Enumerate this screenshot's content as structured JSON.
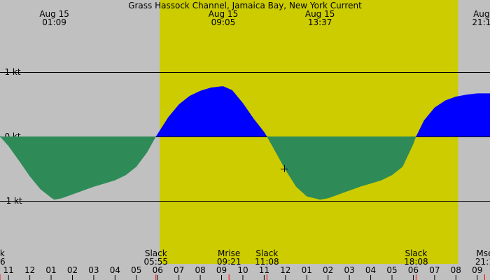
{
  "chart_data": {
    "type": "area",
    "title": "Grass Hassock Channel, Jamaica Bay, New York Current",
    "xlabel": "",
    "ylabel": "",
    "unit": "kt",
    "ylim": [
      -1.7,
      1.97
    ],
    "y_ticks": [
      {
        "value": 1,
        "label": "1 kt"
      },
      {
        "value": 0,
        "label": "0 kt"
      },
      {
        "value": -1,
        "label": "-1 kt"
      }
    ],
    "x_range_hours": [
      22.6,
      45.6
    ],
    "daylight": {
      "start": 30.1,
      "end": 44.1
    },
    "x_hour_ticks": [
      {
        "hour": 23,
        "label": "11"
      },
      {
        "hour": 24,
        "label": "12"
      },
      {
        "hour": 25,
        "label": "01"
      },
      {
        "hour": 26,
        "label": "02"
      },
      {
        "hour": 27,
        "label": "03"
      },
      {
        "hour": 28,
        "label": "04"
      },
      {
        "hour": 29,
        "label": "05"
      },
      {
        "hour": 30,
        "label": "06"
      },
      {
        "hour": 31,
        "label": "07"
      },
      {
        "hour": 32,
        "label": "08"
      },
      {
        "hour": 33,
        "label": "09"
      },
      {
        "hour": 34,
        "label": "10"
      },
      {
        "hour": 35,
        "label": "11"
      },
      {
        "hour": 36,
        "label": "12"
      },
      {
        "hour": 37,
        "label": "01"
      },
      {
        "hour": 38,
        "label": "02"
      },
      {
        "hour": 39,
        "label": "03"
      },
      {
        "hour": 40,
        "label": "04"
      },
      {
        "hour": 41,
        "label": "05"
      },
      {
        "hour": 42,
        "label": "06"
      },
      {
        "hour": 43,
        "label": "07"
      },
      {
        "hour": 44,
        "label": "08"
      },
      {
        "hour": 45,
        "label": "09"
      }
    ],
    "top_events": [
      {
        "hour": 25.15,
        "date": "Aug 15",
        "time": "01:09"
      },
      {
        "hour": 33.08,
        "date": "Aug 15",
        "time": "09:05"
      },
      {
        "hour": 37.62,
        "date": "Aug 15",
        "time": "13:37"
      },
      {
        "hour": 45.2,
        "date": "Aug",
        "time": "21:1"
      }
    ],
    "bottom_events": [
      {
        "hour": 22.6,
        "label": "ck",
        "time": "36"
      },
      {
        "hour": 29.92,
        "label": "Slack",
        "time": "05:55"
      },
      {
        "hour": 33.35,
        "label": "Mrise",
        "time": "09:21"
      },
      {
        "hour": 35.13,
        "label": "Slack",
        "time": "11:08"
      },
      {
        "hour": 42.13,
        "label": "Slack",
        "time": "18:08"
      },
      {
        "hour": 45.35,
        "label": "Mse",
        "time": "21:1"
      }
    ],
    "series": [
      {
        "x": [
          22.6,
          23,
          23.5,
          24,
          24.5,
          25,
          25.15,
          25.5,
          26,
          26.5,
          27,
          27.5,
          28,
          28.5,
          29,
          29.5,
          29.92,
          30.5,
          31,
          31.5,
          32,
          32.5,
          33,
          33.08,
          33.5,
          34,
          34.5,
          35,
          35.13,
          35.5,
          36,
          36.5,
          37,
          37.5,
          37.62,
          38,
          38.5,
          39,
          39.5,
          40,
          40.5,
          41,
          41.5,
          42,
          42.13,
          42.5,
          43,
          43.5,
          44,
          44.5,
          45,
          45.2,
          45.6
        ],
        "y": [
          0,
          -0.15,
          -0.38,
          -0.62,
          -0.82,
          -0.95,
          -0.98,
          -0.96,
          -0.9,
          -0.84,
          -0.78,
          -0.73,
          -0.68,
          -0.6,
          -0.47,
          -0.25,
          0,
          0.3,
          0.5,
          0.63,
          0.71,
          0.76,
          0.78,
          0.78,
          0.72,
          0.52,
          0.28,
          0.07,
          0,
          -0.22,
          -0.52,
          -0.78,
          -0.93,
          -0.97,
          -0.98,
          -0.96,
          -0.9,
          -0.84,
          -0.78,
          -0.73,
          -0.68,
          -0.6,
          -0.47,
          -0.12,
          0,
          0.25,
          0.45,
          0.56,
          0.62,
          0.65,
          0.67,
          0.67,
          0.67
        ]
      }
    ],
    "flood_color": "#0000ff",
    "ebb_color": "#2e8b57",
    "day_color": "#cccc00",
    "night_color": "#c0c0c0",
    "grid": true
  }
}
